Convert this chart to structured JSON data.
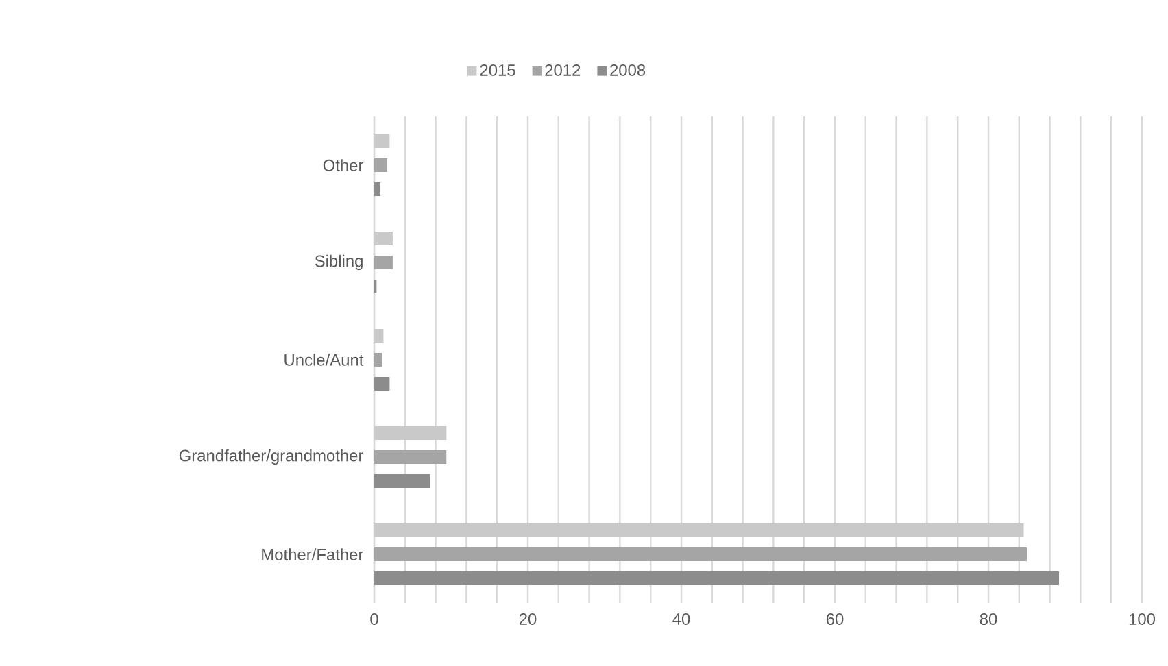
{
  "chart_data": {
    "type": "bar",
    "orientation": "horizontal",
    "categories": [
      "Other",
      "Sibling",
      "Uncle/Aunt",
      "Grandfather/grandmother",
      "Mother/Father"
    ],
    "series": [
      {
        "name": "2015",
        "color": "#c9c9c9",
        "values": [
          2.0,
          2.4,
          1.2,
          9.4,
          84.6
        ]
      },
      {
        "name": "2012",
        "color": "#a5a5a5",
        "values": [
          1.7,
          2.4,
          1.0,
          9.4,
          85.0
        ]
      },
      {
        "name": "2008",
        "color": "#8c8c8c",
        "values": [
          0.8,
          0.3,
          2.0,
          7.3,
          89.2
        ]
      }
    ],
    "xlim": [
      0,
      100
    ],
    "xticks": [
      0,
      {
        "value": 4,
        "label": null
      },
      {
        "value": 8,
        "label": null
      },
      {
        "value": 12,
        "label": null
      },
      {
        "value": 16,
        "label": null
      },
      20,
      {
        "value": 24,
        "label": null
      },
      {
        "value": 28,
        "label": null
      },
      {
        "value": 32,
        "label": null
      },
      {
        "value": 36,
        "label": null
      },
      40,
      {
        "value": 44,
        "label": null
      },
      {
        "value": 48,
        "label": null
      },
      {
        "value": 52,
        "label": null
      },
      {
        "value": 56,
        "label": null
      },
      60,
      {
        "value": 64,
        "label": null
      },
      {
        "value": 68,
        "label": null
      },
      {
        "value": 72,
        "label": null
      },
      {
        "value": 76,
        "label": null
      },
      80,
      {
        "value": 84,
        "label": null
      },
      {
        "value": 88,
        "label": null
      },
      {
        "value": 92,
        "label": null
      },
      {
        "value": 96,
        "label": null
      },
      100
    ],
    "grid": "x",
    "legend": "top"
  }
}
